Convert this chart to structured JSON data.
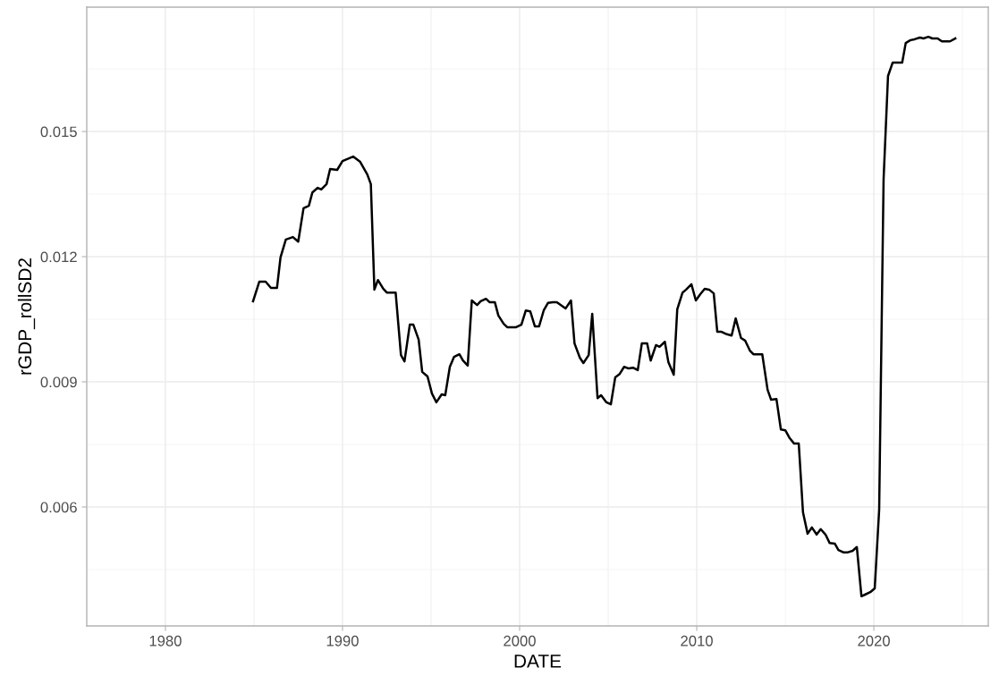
{
  "chart_data": {
    "type": "line",
    "xlabel": "DATE",
    "ylabel": "rGDP_rollSD2",
    "xlim": [
      1975.56,
      2026.46
    ],
    "ylim": [
      0.00315,
      0.01798
    ],
    "xticks": [
      1980,
      1990,
      2000,
      2010,
      2020
    ],
    "yticks": [
      {
        "value": 0.006,
        "label": "0.006"
      },
      {
        "value": 0.009,
        "label": "0.009"
      },
      {
        "value": 0.012,
        "label": "0.012"
      },
      {
        "value": 0.015,
        "label": "0.015"
      }
    ],
    "grid": true,
    "marker": "none",
    "line_style": "solid",
    "series": [
      {
        "color": "#000000",
        "x": [
          1984.95,
          1985.3,
          1985.66,
          1985.96,
          1986.3,
          1986.5,
          1986.8,
          1987.2,
          1987.5,
          1987.8,
          1988.1,
          1988.3,
          1988.6,
          1988.8,
          1989.1,
          1989.3,
          1989.7,
          1990.0,
          1990.6,
          1991.0,
          1991.4,
          1991.6,
          1991.8,
          1992.0,
          1992.3,
          1992.5,
          1993.0,
          1993.3,
          1993.5,
          1993.8,
          1994.0,
          1994.3,
          1994.5,
          1994.8,
          1995.05,
          1995.3,
          1995.6,
          1995.8,
          1996.06,
          1996.3,
          1996.6,
          1996.8,
          1997.07,
          1997.3,
          1997.6,
          1997.8,
          1998.1,
          1998.3,
          1998.6,
          1998.8,
          1999.1,
          1999.3,
          1999.8,
          2000.1,
          2000.35,
          2000.6,
          2000.86,
          2001.1,
          2001.36,
          2001.6,
          2001.87,
          2002.1,
          2002.6,
          2002.9,
          2003.1,
          2003.4,
          2003.6,
          2003.9,
          2004.1,
          2004.4,
          2004.6,
          2004.9,
          2005.15,
          2005.4,
          2005.65,
          2005.9,
          2006.16,
          2006.4,
          2006.67,
          2006.9,
          2007.2,
          2007.4,
          2007.7,
          2007.9,
          2008.2,
          2008.4,
          2008.7,
          2008.9,
          2009.2,
          2009.4,
          2009.7,
          2009.95,
          2010.2,
          2010.45,
          2010.7,
          2010.96,
          2011.16,
          2011.4,
          2011.7,
          2011.97,
          2012.2,
          2012.5,
          2012.73,
          2013.0,
          2013.2,
          2013.7,
          2014.0,
          2014.2,
          2014.5,
          2014.75,
          2015.0,
          2015.25,
          2015.5,
          2015.76,
          2016.0,
          2016.26,
          2016.5,
          2016.77,
          2017.0,
          2017.27,
          2017.5,
          2017.8,
          2018.0,
          2018.3,
          2018.5,
          2018.8,
          2019.04,
          2019.3,
          2019.5,
          2019.8,
          2020.05,
          2020.3,
          2020.55,
          2020.8,
          2021.06,
          2021.6,
          2021.8,
          2022.07,
          2022.3,
          2022.6,
          2022.8,
          2023.08,
          2023.3,
          2023.6,
          2023.84,
          2024.3,
          2024.6
        ],
        "values": [
          0.01093,
          0.0114,
          0.0114,
          0.01125,
          0.01125,
          0.01198,
          0.01241,
          0.01247,
          0.01236,
          0.01316,
          0.01322,
          0.01354,
          0.01365,
          0.01361,
          0.01374,
          0.0141,
          0.01408,
          0.01429,
          0.0144,
          0.01427,
          0.01397,
          0.01374,
          0.01121,
          0.01144,
          0.01123,
          0.01114,
          0.01114,
          0.00964,
          0.00949,
          0.01037,
          0.01037,
          0.01001,
          0.00924,
          0.00913,
          0.00872,
          0.00851,
          0.0087,
          0.00868,
          0.00936,
          0.0096,
          0.00966,
          0.00951,
          0.00939,
          0.01095,
          0.01084,
          0.01093,
          0.01099,
          0.01091,
          0.01091,
          0.01059,
          0.01039,
          0.01031,
          0.01031,
          0.01037,
          0.01071,
          0.01069,
          0.01033,
          0.01033,
          0.01071,
          0.01089,
          0.01091,
          0.01091,
          0.01076,
          0.01095,
          0.00992,
          0.00958,
          0.00945,
          0.00964,
          0.01063,
          0.00861,
          0.00868,
          0.00851,
          0.00846,
          0.00911,
          0.00919,
          0.00936,
          0.00932,
          0.00934,
          0.00928,
          0.00992,
          0.00992,
          0.00951,
          0.00988,
          0.00984,
          0.00996,
          0.00947,
          0.00917,
          0.01074,
          0.01114,
          0.01121,
          0.01134,
          0.01095,
          0.0111,
          0.01123,
          0.01121,
          0.01112,
          0.0102,
          0.0102,
          0.01014,
          0.01011,
          0.01052,
          0.01005,
          0.00999,
          0.00975,
          0.00966,
          0.00966,
          0.00881,
          0.00857,
          0.00859,
          0.00786,
          0.00784,
          0.00765,
          0.00752,
          0.00752,
          0.00587,
          0.00536,
          0.00551,
          0.00534,
          0.00547,
          0.00534,
          0.00514,
          0.00512,
          0.00497,
          0.00491,
          0.00491,
          0.00495,
          0.00504,
          0.00386,
          0.0039,
          0.00396,
          0.00405,
          0.00594,
          0.01386,
          0.01633,
          0.01665,
          0.01665,
          0.01712,
          0.01719,
          0.01721,
          0.01725,
          0.01723,
          0.01727,
          0.01723,
          0.01723,
          0.01716,
          0.01716,
          0.01723
        ]
      }
    ]
  }
}
